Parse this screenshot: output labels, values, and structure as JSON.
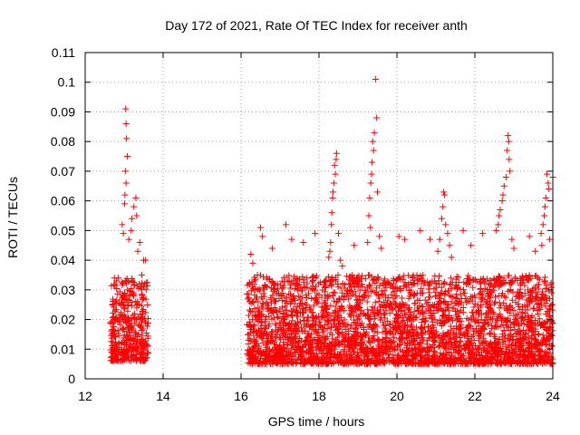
{
  "chart_data": {
    "type": "scatter",
    "title": "Day 172 of 2021, Rate Of TEC Index for receiver anth",
    "xlabel": "GPS time / hours",
    "ylabel": "ROTI / TECUs",
    "xlim": [
      12,
      24
    ],
    "ylim": [
      0,
      0.11
    ],
    "xticks": [
      12,
      14,
      16,
      18,
      20,
      22,
      24
    ],
    "xtick_labels": [
      "12",
      "14",
      "16",
      "18",
      "20",
      "22",
      "24"
    ],
    "yticks": [
      0,
      0.01,
      0.02,
      0.03,
      0.04,
      0.05,
      0.06,
      0.07,
      0.08,
      0.09,
      0.1,
      0.11
    ],
    "ytick_labels": [
      "0",
      "0.01",
      "0.02",
      "0.03",
      "0.04",
      "0.05",
      "0.06",
      "0.07",
      "0.08",
      "0.09",
      "0.1",
      "0.11"
    ],
    "grid": true,
    "marker": "+",
    "color": "#ff0000",
    "series": [
      {
        "name": "ROTI",
        "points": [
          [
            13.04,
            0.091
          ],
          [
            13.05,
            0.086
          ],
          [
            13.06,
            0.081
          ],
          [
            13.08,
            0.075
          ],
          [
            13.03,
            0.07
          ],
          [
            13.05,
            0.066
          ],
          [
            13.02,
            0.062
          ],
          [
            13.01,
            0.059
          ],
          [
            12.95,
            0.052
          ],
          [
            12.98,
            0.049
          ],
          [
            13.25,
            0.058
          ],
          [
            13.3,
            0.061
          ],
          [
            13.32,
            0.055
          ],
          [
            13.2,
            0.054
          ],
          [
            13.18,
            0.05
          ],
          [
            13.12,
            0.047
          ],
          [
            13.4,
            0.046
          ],
          [
            13.5,
            0.04
          ],
          [
            13.55,
            0.04
          ],
          [
            13.35,
            0.043
          ],
          [
            12.75,
            0.034
          ],
          [
            12.8,
            0.033
          ],
          [
            12.85,
            0.034
          ],
          [
            13.45,
            0.035
          ],
          [
            13.52,
            0.032
          ],
          [
            19.45,
            0.101
          ],
          [
            19.48,
            0.088
          ],
          [
            19.42,
            0.083
          ],
          [
            19.38,
            0.08
          ],
          [
            19.4,
            0.077
          ],
          [
            19.36,
            0.073
          ],
          [
            19.35,
            0.069
          ],
          [
            19.33,
            0.066
          ],
          [
            19.5,
            0.063
          ],
          [
            19.3,
            0.061
          ],
          [
            19.28,
            0.055
          ],
          [
            19.32,
            0.051
          ],
          [
            19.25,
            0.046
          ],
          [
            19.55,
            0.048
          ],
          [
            19.6,
            0.044
          ],
          [
            18.45,
            0.076
          ],
          [
            18.44,
            0.074
          ],
          [
            18.4,
            0.072
          ],
          [
            18.42,
            0.069
          ],
          [
            18.38,
            0.066
          ],
          [
            18.36,
            0.063
          ],
          [
            18.35,
            0.061
          ],
          [
            18.33,
            0.056
          ],
          [
            18.32,
            0.052
          ],
          [
            18.5,
            0.049
          ],
          [
            18.3,
            0.046
          ],
          [
            18.28,
            0.043
          ],
          [
            18.55,
            0.04
          ],
          [
            18.6,
            0.038
          ],
          [
            18.25,
            0.041
          ],
          [
            22.85,
            0.082
          ],
          [
            22.87,
            0.08
          ],
          [
            22.83,
            0.077
          ],
          [
            22.88,
            0.074
          ],
          [
            22.9,
            0.07
          ],
          [
            22.8,
            0.068
          ],
          [
            22.75,
            0.065
          ],
          [
            22.72,
            0.062
          ],
          [
            22.7,
            0.06
          ],
          [
            22.65,
            0.057
          ],
          [
            22.62,
            0.055
          ],
          [
            22.6,
            0.052
          ],
          [
            22.55,
            0.05
          ],
          [
            22.95,
            0.047
          ],
          [
            23.0,
            0.044
          ],
          [
            23.85,
            0.069
          ],
          [
            23.88,
            0.066
          ],
          [
            23.9,
            0.064
          ],
          [
            23.82,
            0.061
          ],
          [
            23.8,
            0.058
          ],
          [
            23.78,
            0.055
          ],
          [
            23.75,
            0.052
          ],
          [
            23.7,
            0.049
          ],
          [
            23.92,
            0.047
          ],
          [
            23.72,
            0.045
          ],
          [
            21.2,
            0.063
          ],
          [
            21.22,
            0.062
          ],
          [
            21.18,
            0.058
          ],
          [
            21.15,
            0.054
          ],
          [
            21.25,
            0.052
          ],
          [
            21.3,
            0.049
          ],
          [
            21.1,
            0.047
          ],
          [
            21.35,
            0.045
          ],
          [
            21.05,
            0.043
          ],
          [
            21.4,
            0.041
          ],
          [
            16.25,
            0.042
          ],
          [
            16.3,
            0.039
          ],
          [
            16.5,
            0.051
          ],
          [
            16.55,
            0.048
          ],
          [
            17.15,
            0.052
          ],
          [
            17.3,
            0.047
          ],
          [
            17.6,
            0.046
          ],
          [
            17.9,
            0.049
          ],
          [
            18.9,
            0.045
          ],
          [
            20.05,
            0.048
          ],
          [
            20.2,
            0.047
          ],
          [
            20.6,
            0.05
          ],
          [
            20.85,
            0.047
          ],
          [
            21.7,
            0.05
          ],
          [
            21.9,
            0.045
          ],
          [
            22.2,
            0.049
          ],
          [
            23.4,
            0.048
          ],
          [
            23.55,
            0.043
          ],
          [
            24.0,
            0.068
          ],
          [
            16.8,
            0.044
          ]
        ]
      }
    ],
    "density_bands": [
      {
        "x_start": 12.65,
        "x_end": 13.62,
        "typical_low": 0.006,
        "typical_high": 0.034
      },
      {
        "x_start": 16.15,
        "x_end": 24.0,
        "typical_low": 0.005,
        "typical_high": 0.035
      }
    ]
  }
}
